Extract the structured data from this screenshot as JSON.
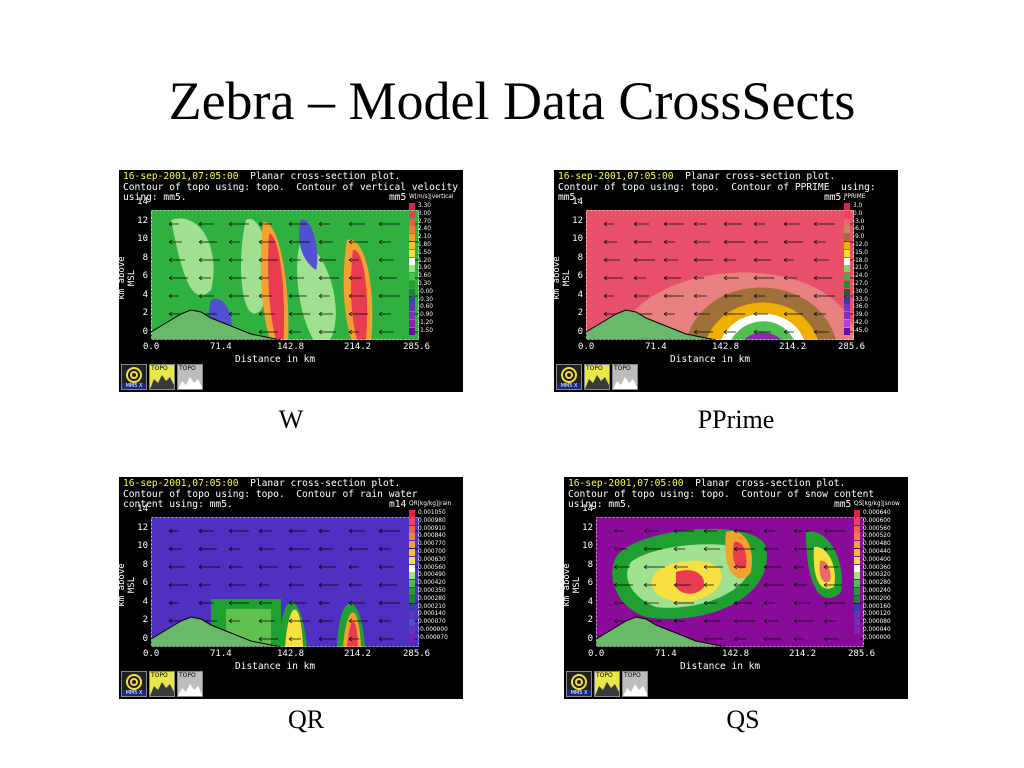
{
  "slide": {
    "title": "Zebra – Model Data CrossSects"
  },
  "common": {
    "timestamp": "16-sep-2001,07:05:00",
    "plot_type": "Planar cross-section plot.",
    "yaxis_label": "km above MSL",
    "xaxis_label": "Distance in km",
    "yticks": [
      "14",
      "12",
      "10",
      "8",
      "6",
      "4",
      "2",
      "0"
    ],
    "xticks": [
      "0.0",
      "71.4",
      "142.8",
      "214.2",
      "285.6"
    ],
    "icons": {
      "logo": "Z",
      "topo1_label": "TOPO",
      "topo2_label": "TOPO",
      "mm5_label": "MM5 X"
    }
  },
  "panels": [
    {
      "caption": "W",
      "line2": "Contour of topo using: topo.  Contour of vertical velocity",
      "line3": "using: mm5.",
      "mm5_tag": "mm5",
      "legend_title": "W[m/s]|vertical",
      "legend_values": [
        "3.30",
        "3.00",
        "2.70",
        "2.40",
        "2.10",
        "1.80",
        "1.50",
        "1.20",
        "0.90",
        "0.60",
        "0.30",
        "-0.00",
        "-0.30",
        "-0.60",
        "-0.90",
        "-1.20",
        "-1.50"
      ],
      "legend_colors": [
        "#e0205a",
        "#e83c50",
        "#ee5a4a",
        "#f27a3a",
        "#f69a2a",
        "#f8c020",
        "#f8e040",
        "#ffffff",
        "#a0e090",
        "#50c050",
        "#20a030",
        "#208040",
        "#4040c0",
        "#5a3ab0",
        "#7a30c0",
        "#9020b0",
        "#6a0aa0"
      ]
    },
    {
      "caption": "PPrime",
      "line2": "Contour of topo using: topo.  Contour of PPRIME  using:",
      "line3": "mm5.",
      "mm5_tag": "mm5.",
      "legend_title": "PPRIME",
      "legend_values": [
        "3.0",
        "0.0",
        "-3.0",
        "-6.0",
        "-9.0",
        "-12.0",
        "-15.0",
        "-18.0",
        "-21.0",
        "-24.0",
        "-27.0",
        "-30.0",
        "-33.0",
        "-36.0",
        "-39.0",
        "-42.0",
        "-45.0"
      ],
      "legend_colors": [
        "#e81e4a",
        "#ee4060",
        "#e86a6a",
        "#c08a6a",
        "#a06a3a",
        "#f0b000",
        "#f8e020",
        "#ffffff",
        "#80d070",
        "#40b040",
        "#209030",
        "#206030",
        "#3a3ab0",
        "#6a3ac0",
        "#8a2ab0",
        "#b040e0",
        "#6a0aa0"
      ]
    },
    {
      "caption": "QR",
      "line2": "Contour of topo using: topo.  Contour of rain water",
      "line3": "content using: mm5.",
      "mm5_tag": "m14",
      "legend_title": "QR[kg/kg]|rain",
      "legend_values": [
        "0.001050",
        "0.000980",
        "0.000910",
        "0.000840",
        "0.000770",
        "0.000700",
        "0.000630",
        "0.000560",
        "0.000490",
        "0.000420",
        "0.000350",
        "0.000280",
        "0.000210",
        "0.000140",
        "0.000070",
        "-0.000000",
        "-0.000070"
      ],
      "legend_colors": [
        "#e81e4a",
        "#ee4060",
        "#f06050",
        "#f28040",
        "#f6a030",
        "#f8c020",
        "#f8e040",
        "#ffffff",
        "#a0e090",
        "#50c050",
        "#20a030",
        "#208040",
        "#3a3ab0",
        "#5a3ab0",
        "#5050d0",
        "#6a30c0",
        "#7a20b0"
      ]
    },
    {
      "caption": "QS",
      "line2": "Contour of topo using: topo.  Contour of snow content",
      "line3": "using: mm5.",
      "mm5_tag": "mm5",
      "legend_title": "QS[kg/kg]|snow",
      "legend_values": [
        "0.000640",
        "0.000600",
        "0.000560",
        "0.000520",
        "0.000480",
        "0.000440",
        "0.000400",
        "0.000360",
        "0.000320",
        "0.000280",
        "0.000240",
        "0.000200",
        "0.000160",
        "0.000120",
        "0.000080",
        "0.000040",
        "0.000000"
      ],
      "legend_colors": [
        "#e81e4a",
        "#ee4060",
        "#f06050",
        "#f28040",
        "#f6a030",
        "#f8c020",
        "#f8e040",
        "#ffffff",
        "#a0e090",
        "#50c050",
        "#20a030",
        "#208040",
        "#3a3ab0",
        "#5a3ab0",
        "#6a30c0",
        "#8a20b0",
        "#8a0a9a"
      ]
    }
  ]
}
